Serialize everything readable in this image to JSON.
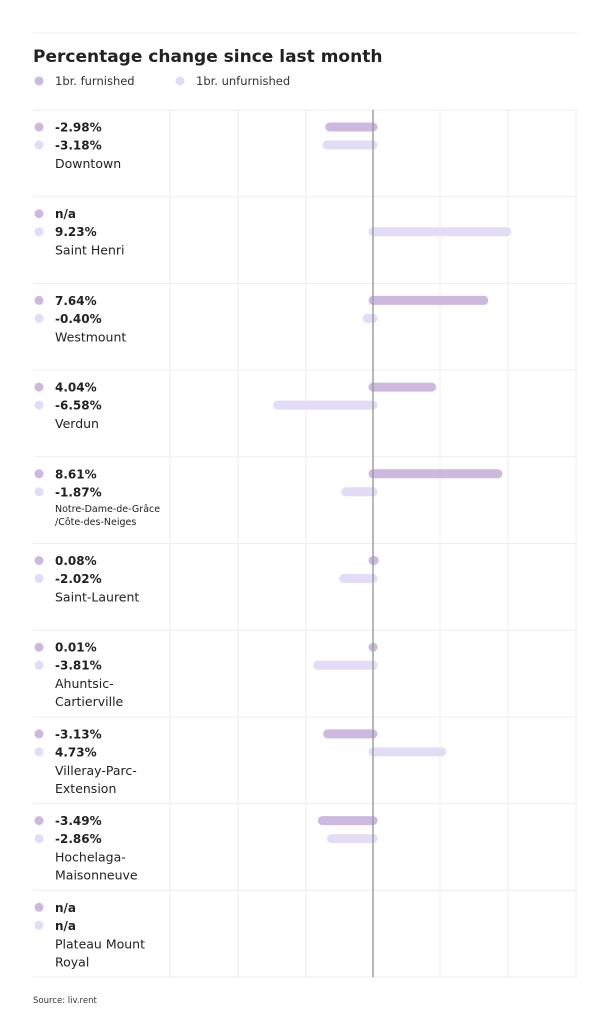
{
  "chart_data": {
    "type": "bar",
    "title": "Percentage change since last month",
    "source": "Source: liv.rent",
    "series": [
      {
        "name": "1br. furnished",
        "color": "#cdb9e0",
        "values": [
          -2.98,
          null,
          7.64,
          4.04,
          8.61,
          0.08,
          0.01,
          -3.13,
          -3.49,
          null
        ],
        "labels": [
          "-2.98%",
          "n/a",
          "7.64%",
          "4.04%",
          "8.61%",
          "0.08%",
          "0.01%",
          "-3.13%",
          "-3.49%",
          "n/a"
        ]
      },
      {
        "name": "1br. unfurnished",
        "color": "#e3dcf7",
        "values": [
          -3.18,
          9.23,
          -0.4,
          -6.58,
          -1.87,
          -2.02,
          -3.81,
          4.73,
          -2.86,
          null
        ],
        "labels": [
          "-3.18%",
          "9.23%",
          "-0.40%",
          "-6.58%",
          "-1.87%",
          "-2.02%",
          "-3.81%",
          "4.73%",
          "-2.86%",
          "n/a"
        ]
      }
    ],
    "categories": [
      [
        "Downtown"
      ],
      [
        "Saint Henri"
      ],
      [
        "Westmount"
      ],
      [
        "Verdun"
      ],
      [
        "Notre-Dame-de-Grâce",
        "/Côte-des-Neiges"
      ],
      [
        "Saint-Laurent"
      ],
      [
        "Ahuntsic-",
        "Cartierville"
      ],
      [
        "Villeray-Parc-",
        "Extension"
      ],
      [
        "Hochelaga-",
        "Maisonneuve"
      ],
      [
        "Plateau Mount",
        "Royal"
      ]
    ],
    "xlim": [
      -15,
      15
    ],
    "legend": "top-left",
    "grid": true
  }
}
